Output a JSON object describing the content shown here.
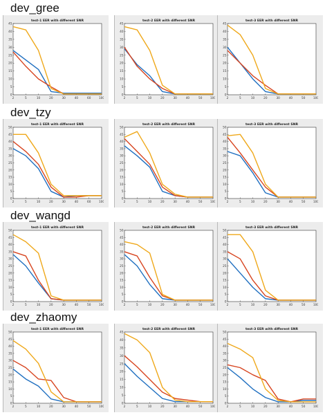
{
  "colors": {
    "blue": "#1f6fc0",
    "orange": "#d7441f",
    "yellow": "#efa81a",
    "panel": "#ececec",
    "axis": "#333333",
    "grid_off": true
  },
  "groups": [
    {
      "label": "dev_gree"
    },
    {
      "label": "dev_tzy"
    },
    {
      "label": "dev_wangd"
    },
    {
      "label": "dev_zhaomy"
    }
  ],
  "chart_data": [
    {
      "type": "line",
      "group": "dev_gree",
      "title": "test-1 EER with different SNR",
      "categories": [
        "2",
        "5",
        "10",
        "20",
        "30",
        "40",
        "60",
        "100"
      ],
      "ylim": [
        0,
        45
      ],
      "yticks": [
        "0",
        "5",
        "10",
        "15",
        "20",
        "25",
        "30",
        "35",
        "40",
        "45"
      ],
      "series": [
        {
          "color": "blue",
          "values": [
            28,
            22,
            16,
            2,
            1,
            1,
            1,
            1
          ]
        },
        {
          "color": "orange",
          "values": [
            27,
            18,
            10,
            5,
            0.5,
            0.5,
            0.5,
            0.5
          ]
        },
        {
          "color": "yellow",
          "values": [
            43,
            41,
            28,
            4,
            0.5,
            0.5,
            0.5,
            0.5
          ]
        }
      ]
    },
    {
      "type": "line",
      "group": "dev_gree",
      "title": "test-2 EER with different SNR",
      "categories": [
        "2",
        "5",
        "10",
        "20",
        "30",
        "40",
        "50",
        "100"
      ],
      "ylim": [
        0,
        45
      ],
      "yticks": [
        "0",
        "5",
        "10",
        "15",
        "20",
        "25",
        "30",
        "35",
        "40",
        "45"
      ],
      "series": [
        {
          "color": "blue",
          "values": [
            29,
            19,
            12,
            2,
            0.5,
            0.5,
            0.5,
            0.5
          ]
        },
        {
          "color": "orange",
          "values": [
            30,
            18,
            10,
            4,
            0.5,
            0.5,
            0.5,
            0.5
          ]
        },
        {
          "color": "yellow",
          "values": [
            43,
            41,
            28,
            6,
            0.5,
            0.5,
            0.5,
            0.5
          ]
        }
      ]
    },
    {
      "type": "line",
      "group": "dev_gree",
      "title": "test-3 EER with different SNR",
      "categories": [
        "2",
        "5",
        "10",
        "20",
        "30",
        "40",
        "50",
        "100"
      ],
      "ylim": [
        0,
        45
      ],
      "yticks": [
        "0",
        "5",
        "10",
        "15",
        "20",
        "25",
        "30",
        "35",
        "40",
        "45"
      ],
      "series": [
        {
          "color": "blue",
          "values": [
            30,
            20,
            10,
            2,
            0.5,
            0.5,
            0.5,
            0.5
          ]
        },
        {
          "color": "orange",
          "values": [
            28,
            20,
            12,
            6,
            0.5,
            0.5,
            0.5,
            0.5
          ]
        },
        {
          "color": "yellow",
          "values": [
            44,
            38,
            25,
            4,
            0.5,
            0.5,
            0.5,
            0.5
          ]
        }
      ]
    },
    {
      "type": "line",
      "group": "dev_tzy",
      "title": "test-1 EER with different SNR",
      "categories": [
        "2",
        "5",
        "10",
        "20",
        "30",
        "40",
        "60",
        "100"
      ],
      "ylim": [
        0,
        50
      ],
      "yticks": [
        "0",
        "5",
        "10",
        "15",
        "20",
        "25",
        "30",
        "35",
        "40",
        "45",
        "50"
      ],
      "series": [
        {
          "color": "blue",
          "values": [
            35,
            30,
            21,
            5,
            1,
            2,
            2,
            2
          ]
        },
        {
          "color": "orange",
          "values": [
            40,
            33,
            24,
            8,
            1,
            1,
            2,
            2
          ]
        },
        {
          "color": "yellow",
          "values": [
            45,
            45,
            32,
            10,
            2,
            2,
            2,
            2
          ]
        }
      ]
    },
    {
      "type": "line",
      "group": "dev_tzy",
      "title": "test-2 EER with different SNR",
      "categories": [
        "2",
        "5",
        "10",
        "20",
        "30",
        "40",
        "50",
        "100"
      ],
      "ylim": [
        0,
        50
      ],
      "yticks": [
        "0",
        "5",
        "10",
        "15",
        "20",
        "25",
        "30",
        "35",
        "40",
        "45",
        "50"
      ],
      "series": [
        {
          "color": "blue",
          "values": [
            37,
            30,
            22,
            5,
            2,
            1,
            1,
            1
          ]
        },
        {
          "color": "orange",
          "values": [
            42,
            33,
            24,
            8,
            2,
            1,
            1,
            1
          ]
        },
        {
          "color": "yellow",
          "values": [
            43,
            47,
            32,
            10,
            3,
            1,
            1,
            1
          ]
        }
      ]
    },
    {
      "type": "line",
      "group": "dev_tzy",
      "title": "test-3 EER with different SNR",
      "categories": [
        "2",
        "5",
        "10",
        "20",
        "30",
        "40",
        "50",
        "100"
      ],
      "ylim": [
        0,
        50
      ],
      "yticks": [
        "0",
        "5",
        "10",
        "15",
        "20",
        "25",
        "30",
        "35",
        "40",
        "45",
        "50"
      ],
      "series": [
        {
          "color": "blue",
          "values": [
            33,
            30,
            18,
            4,
            1,
            1,
            1,
            1
          ]
        },
        {
          "color": "orange",
          "values": [
            43,
            32,
            20,
            8,
            1,
            1,
            1,
            1
          ]
        },
        {
          "color": "yellow",
          "values": [
            44,
            45,
            32,
            10,
            1,
            1,
            1,
            1
          ]
        }
      ]
    },
    {
      "type": "line",
      "group": "dev_wangd",
      "title": "test-1 EER with different SNR",
      "categories": [
        "2",
        "5",
        "10",
        "20",
        "30",
        "40",
        "50",
        "100"
      ],
      "ylim": [
        0,
        50
      ],
      "yticks": [
        "0",
        "5",
        "10",
        "15",
        "20",
        "25",
        "30",
        "35",
        "40",
        "45",
        "50"
      ],
      "series": [
        {
          "color": "blue",
          "values": [
            33,
            25,
            13,
            2,
            1,
            1,
            1,
            1
          ]
        },
        {
          "color": "orange",
          "values": [
            35,
            32,
            15,
            2,
            1,
            1,
            1,
            1
          ]
        },
        {
          "color": "yellow",
          "values": [
            47,
            42,
            34,
            4,
            1,
            1,
            1,
            1
          ]
        }
      ]
    },
    {
      "type": "line",
      "group": "dev_wangd",
      "title": "test-2 EER with different SNR",
      "categories": [
        "2",
        "5",
        "10",
        "20",
        "30",
        "40",
        "50",
        "100"
      ],
      "ylim": [
        0,
        50
      ],
      "yticks": [
        "0",
        "5",
        "10",
        "15",
        "20",
        "25",
        "30",
        "35",
        "40",
        "45",
        "50"
      ],
      "series": [
        {
          "color": "blue",
          "values": [
            33,
            25,
            12,
            2,
            1,
            1,
            1,
            1
          ]
        },
        {
          "color": "orange",
          "values": [
            35,
            32,
            17,
            4,
            1,
            1,
            1,
            1
          ]
        },
        {
          "color": "yellow",
          "values": [
            42,
            40,
            34,
            5,
            1,
            1,
            1,
            1
          ]
        }
      ]
    },
    {
      "type": "line",
      "group": "dev_wangd",
      "title": "test-3 EER with different SNR",
      "categories": [
        "2",
        "5",
        "10",
        "20",
        "30",
        "40",
        "50",
        "100"
      ],
      "ylim": [
        0,
        50
      ],
      "yticks": [
        "0",
        "5",
        "10",
        "15",
        "20",
        "25",
        "30",
        "35",
        "40",
        "45",
        "50"
      ],
      "series": [
        {
          "color": "blue",
          "values": [
            30,
            20,
            10,
            2,
            1,
            1,
            1,
            1
          ]
        },
        {
          "color": "orange",
          "values": [
            35,
            30,
            15,
            4,
            1,
            1,
            1,
            1
          ]
        },
        {
          "color": "yellow",
          "values": [
            47,
            47,
            35,
            8,
            1,
            1,
            1,
            1
          ]
        }
      ]
    },
    {
      "type": "line",
      "group": "dev_zhaomy",
      "title": "test-1 EER with different SNR",
      "categories": [
        "2",
        "5",
        "10",
        "20",
        "30",
        "40",
        "50",
        "100"
      ],
      "ylim": [
        0,
        50
      ],
      "yticks": [
        "0",
        "5",
        "10",
        "15",
        "20",
        "25",
        "30",
        "35",
        "40",
        "45",
        "50"
      ],
      "series": [
        {
          "color": "blue",
          "values": [
            24,
            17,
            12,
            3,
            1,
            1,
            1,
            1
          ]
        },
        {
          "color": "orange",
          "values": [
            30,
            25,
            17,
            16,
            4,
            1,
            1,
            1
          ]
        },
        {
          "color": "yellow",
          "values": [
            44,
            38,
            28,
            8,
            1,
            1,
            1,
            1
          ]
        }
      ]
    },
    {
      "type": "line",
      "group": "dev_zhaomy",
      "title": "test-2 EER with different SNR",
      "categories": [
        "2",
        "5",
        "10",
        "20",
        "30",
        "40",
        "50",
        "100"
      ],
      "ylim": [
        0,
        45
      ],
      "yticks": [
        "0",
        "5",
        "10",
        "15",
        "20",
        "25",
        "30",
        "35",
        "40",
        "45"
      ],
      "series": [
        {
          "color": "blue",
          "values": [
            25,
            17,
            10,
            3,
            1,
            1,
            1,
            1
          ]
        },
        {
          "color": "orange",
          "values": [
            30,
            23,
            15,
            7,
            3,
            2,
            1,
            1
          ]
        },
        {
          "color": "yellow",
          "values": [
            44,
            40,
            32,
            10,
            2,
            1,
            1,
            1
          ]
        }
      ]
    },
    {
      "type": "line",
      "group": "dev_zhaomy",
      "title": "test-3 EER with different SNR",
      "categories": [
        "2",
        "5",
        "10",
        "20",
        "30",
        "40",
        "50",
        "100"
      ],
      "ylim": [
        0,
        50
      ],
      "yticks": [
        "0",
        "5",
        "10",
        "15",
        "20",
        "25",
        "30",
        "35",
        "40",
        "45",
        "50"
      ],
      "series": [
        {
          "color": "blue",
          "values": [
            25,
            18,
            10,
            4,
            1,
            1,
            2,
            2
          ]
        },
        {
          "color": "orange",
          "values": [
            27,
            25,
            20,
            16,
            3,
            1,
            3,
            3
          ]
        },
        {
          "color": "yellow",
          "values": [
            42,
            38,
            32,
            10,
            2,
            1,
            1,
            1
          ]
        }
      ]
    }
  ]
}
